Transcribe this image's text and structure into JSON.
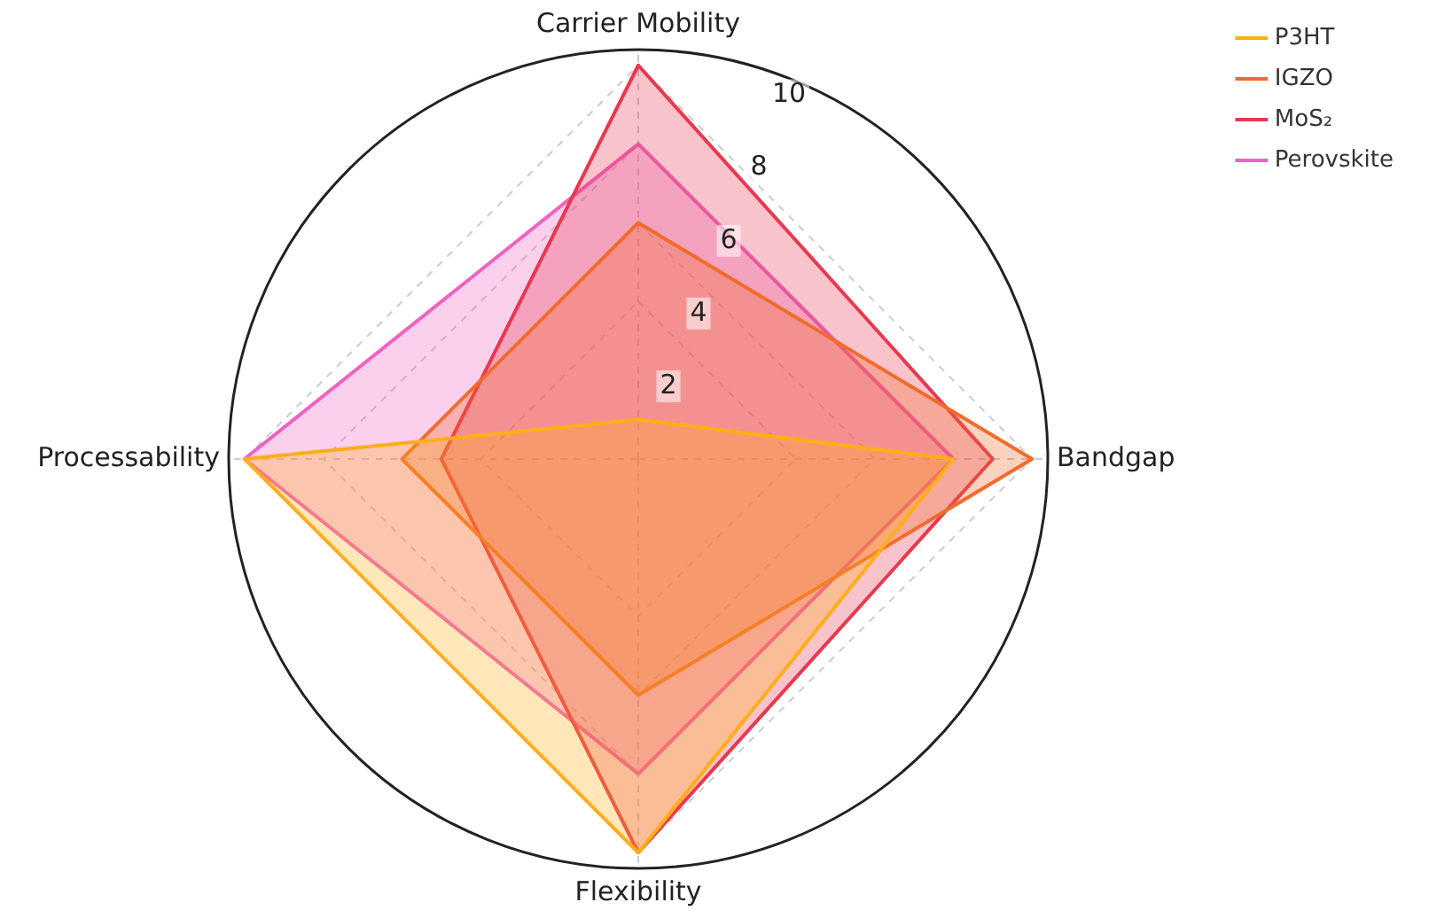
{
  "chart_data": {
    "type": "radar",
    "categories": [
      "Carrier Mobility",
      "Bandgap",
      "Flexibility",
      "Processability"
    ],
    "series": [
      {
        "name": "P3HT",
        "color": "#ffae1a",
        "values": [
          1,
          8,
          10,
          10
        ]
      },
      {
        "name": "IGZO",
        "color": "#f26b2b",
        "values": [
          6,
          10,
          6,
          6
        ]
      },
      {
        "name": "MoS₂",
        "color": "#e8384f",
        "values": [
          10,
          9,
          10,
          5
        ]
      },
      {
        "name": "Perovskite",
        "color": "#f062c0",
        "values": [
          8,
          8,
          8,
          10
        ]
      }
    ],
    "ylim": [
      0,
      10.4
    ],
    "yticks": [
      2,
      4,
      6,
      8,
      10
    ],
    "grid": true,
    "legend": "top right",
    "marker": "none",
    "line_style": "solid"
  }
}
